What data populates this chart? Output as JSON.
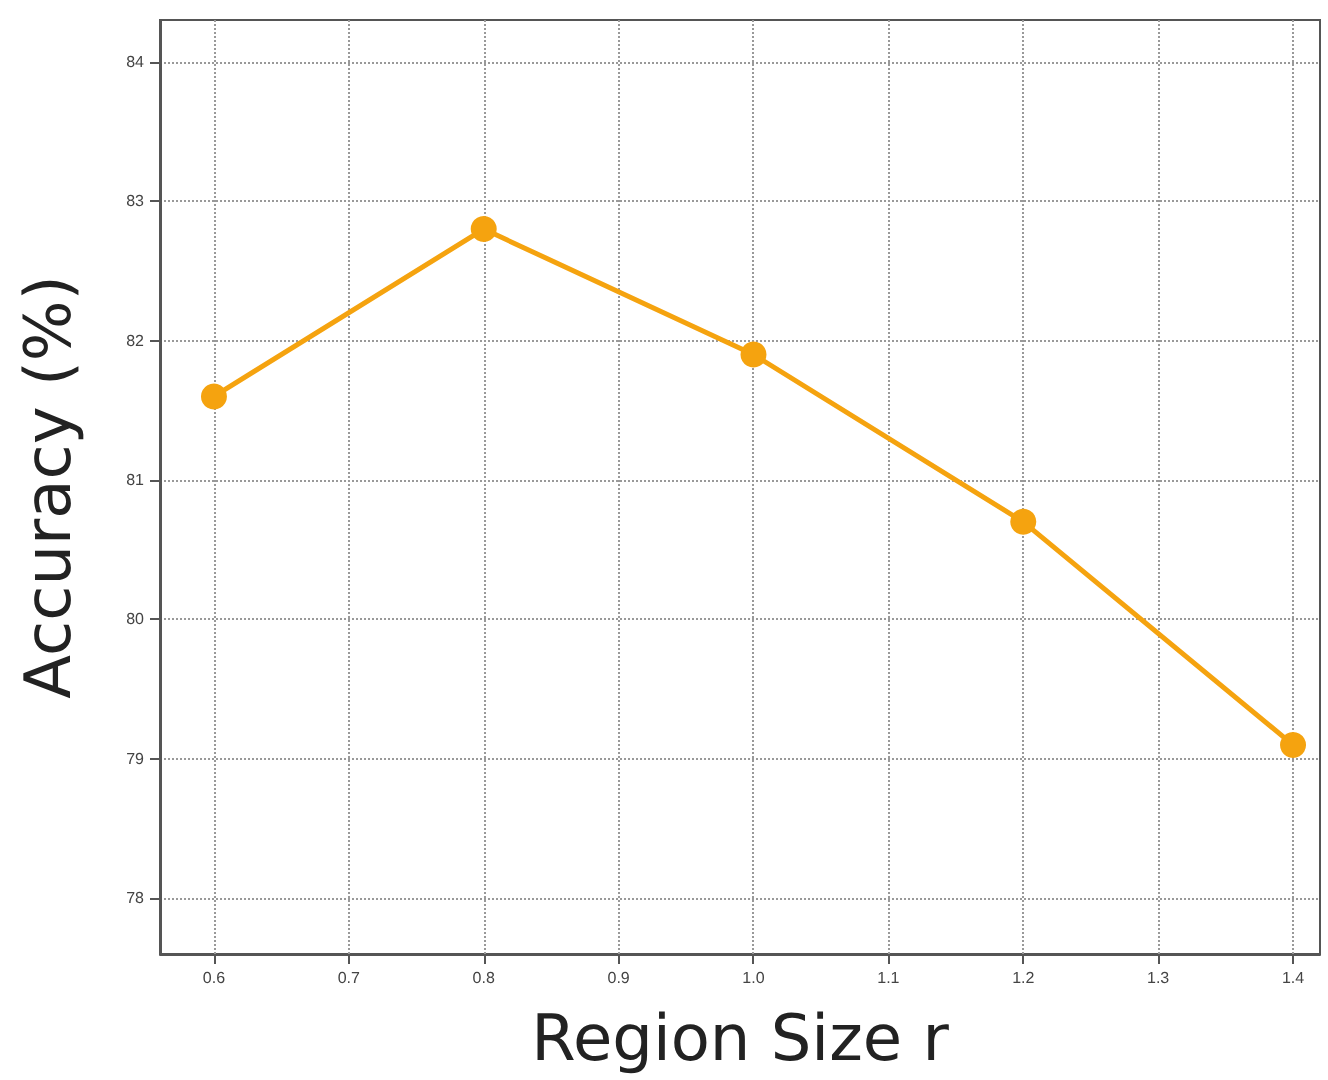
{
  "chart_data": {
    "type": "line",
    "xlabel": "Region Size r",
    "ylabel": "Accuracy (%)",
    "x": [
      0.6,
      0.8,
      1.0,
      1.2,
      1.4
    ],
    "series": [
      {
        "color": "#f5a30f",
        "values": [
          81.6,
          82.8,
          81.9,
          80.7,
          79.1
        ]
      }
    ],
    "xlim": [
      0.56,
      1.42
    ],
    "xticks": [
      {
        "value": 0.6,
        "label": "0.6"
      },
      {
        "value": 0.7,
        "label": "0.7"
      },
      {
        "value": 0.8,
        "label": "0.8"
      },
      {
        "value": 0.9,
        "label": "0.9"
      },
      {
        "value": 1.0,
        "label": "1.0"
      },
      {
        "value": 1.1,
        "label": "1.1"
      },
      {
        "value": 1.2,
        "label": "1.2"
      },
      {
        "value": 1.3,
        "label": "1.3"
      },
      {
        "value": 1.4,
        "label": "1.4"
      }
    ],
    "ylim": [
      77.6,
      84.3
    ],
    "yticks": [
      78,
      79,
      80,
      81,
      82,
      83,
      84
    ],
    "grid": true,
    "marker": "circle",
    "line_style": "solid"
  }
}
